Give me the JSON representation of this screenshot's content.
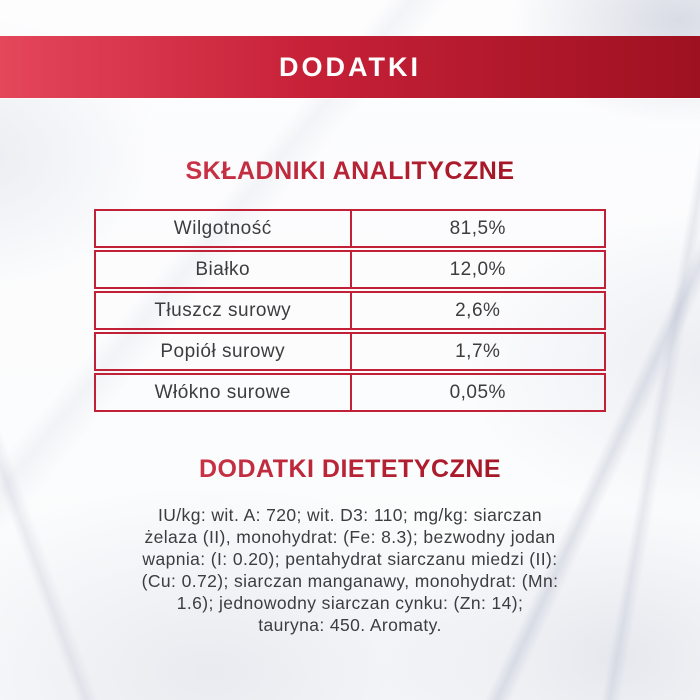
{
  "banner": {
    "title": "DODATKI"
  },
  "analytical": {
    "heading": "SKŁADNIKI ANALITYCZNE",
    "rows": [
      {
        "label": "Wilgotność",
        "value": "81,5%"
      },
      {
        "label": "Białko",
        "value": "12,0%"
      },
      {
        "label": "Tłuszcz surowy",
        "value": "2,6%"
      },
      {
        "label": "Popiół surowy",
        "value": "1,7%"
      },
      {
        "label": "Włókno surowe",
        "value": "0,05%"
      }
    ]
  },
  "dietetic": {
    "heading": "DODATKI DIETETYCZNE",
    "text": "IU/kg: wit. A: 720; wit. D3: 110; mg/kg: siarczan\nżelaza (II), monohydrat: (Fe: 8.3); bezwodny jodan\nwapnia: (I: 0.20); pentahydrat siarczanu miedzi (II):\n(Cu: 0.72); siarczan manganawy, monohydrat: (Mn:\n1.6); jednowodny siarczan cynku: (Zn: 14);\ntauryna: 450. Aromaty."
  },
  "colors": {
    "banner_left": "#e4465a",
    "banner_mid": "#c62037",
    "banner_right": "#9e1120",
    "heading_left": "#d63c51",
    "heading_right": "#9e1120",
    "table_border": "#c12036",
    "text_color": "#3d3d40"
  }
}
